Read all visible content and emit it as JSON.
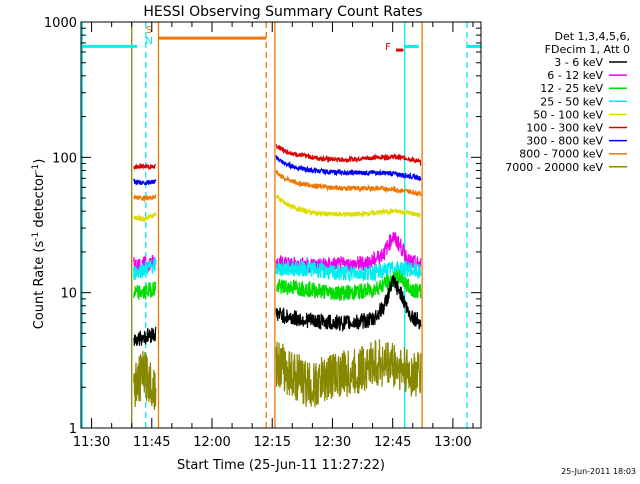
{
  "chart_data": {
    "type": "line",
    "title": "HESSI Observing Summary Count Rates",
    "xlabel": "Start Time (25-Jun-11 11:27:22)",
    "ylabel_main": "Count Rate (s",
    "ylabel_sup1": "-1",
    "ylabel_mid": " detector",
    "ylabel_sup2": "-1",
    "ylabel_end": ")",
    "y_scale": "log",
    "ylim": [
      1,
      1000
    ],
    "xlim": [
      "11:27:22",
      "13:07"
    ],
    "x_ticks": [
      {
        "value": "11:30",
        "label": "11:30"
      },
      {
        "value": "11:45",
        "label": "11:45"
      },
      {
        "value": "12:00",
        "label": "12:00"
      },
      {
        "value": "12:15",
        "label": "12:15"
      },
      {
        "value": "12:30",
        "label": "12:30"
      },
      {
        "value": "12:45",
        "label": "12:45"
      },
      {
        "value": "13:00",
        "label": "13:00"
      }
    ],
    "y_ticks": [
      {
        "value": 1,
        "label": "1"
      },
      {
        "value": 10,
        "label": "10"
      },
      {
        "value": 100,
        "label": "100"
      },
      {
        "value": 1000,
        "label": "1000"
      }
    ],
    "legend": {
      "placement": "right",
      "header": [
        "Det 1,3,4,5,6,",
        "FDecim 1, Att 0"
      ],
      "entries": [
        {
          "label": "3 - 6 keV",
          "color": "#000000"
        },
        {
          "label": "6 - 12 keV",
          "color": "#ee00ee"
        },
        {
          "label": "12 - 25 keV",
          "color": "#00dd00"
        },
        {
          "label": "25 - 50 keV",
          "color": "#00eeee"
        },
        {
          "label": "50 - 100 keV",
          "color": "#dddd00"
        },
        {
          "label": "100 - 300 keV",
          "color": "#dd0000"
        },
        {
          "label": "300 - 800 keV",
          "color": "#0000ee"
        },
        {
          "label": "800 - 7000 keV",
          "color": "#ee7700"
        },
        {
          "label": "7000 - 20000 keV",
          "color": "#888800"
        }
      ]
    },
    "series": [
      {
        "name": "100 - 300 keV",
        "color": "#dd0000",
        "segments": [
          {
            "t": [
              "11:40:30",
              "11:43",
              "11:46"
            ],
            "v": [
              85,
              86,
              85
            ]
          },
          {
            "t": [
              "12:16",
              "12:18",
              "12:21",
              "12:25",
              "12:29",
              "12:33",
              "12:37",
              "12:41",
              "12:45",
              "12:49",
              "12:52"
            ],
            "v": [
              122,
              112,
              105,
              100,
              97,
              96,
              98,
              100,
              101,
              98,
              92
            ]
          }
        ]
      },
      {
        "name": "300 - 800 keV",
        "color": "#0000ee",
        "segments": [
          {
            "t": [
              "11:40:30",
              "11:43",
              "11:46"
            ],
            "v": [
              66,
              65,
              66
            ]
          },
          {
            "t": [
              "12:16",
              "12:18",
              "12:21",
              "12:25",
              "12:29",
              "12:33",
              "12:37",
              "12:41",
              "12:45",
              "12:49",
              "12:52"
            ],
            "v": [
              100,
              90,
              84,
              80,
              78,
              77,
              77,
              77,
              76,
              73,
              70
            ]
          }
        ]
      },
      {
        "name": "800 - 7000 keV",
        "color": "#ee7700",
        "segments": [
          {
            "t": [
              "11:40:30",
              "11:43",
              "11:46"
            ],
            "v": [
              51,
              50,
              51
            ]
          },
          {
            "t": [
              "12:16",
              "12:18",
              "12:21",
              "12:25",
              "12:29",
              "12:33",
              "12:37",
              "12:41",
              "12:45",
              "12:49",
              "12:52"
            ],
            "v": [
              78,
              70,
              65,
              62,
              60,
              59,
              59,
              59,
              58,
              56,
              54
            ]
          }
        ]
      },
      {
        "name": "50 - 100 keV",
        "color": "#dddd00",
        "segments": [
          {
            "t": [
              "11:40:30",
              "11:43",
              "11:46"
            ],
            "v": [
              36,
              35,
              38
            ]
          },
          {
            "t": [
              "12:16",
              "12:18",
              "12:21",
              "12:25",
              "12:29",
              "12:33",
              "12:37",
              "12:41",
              "12:45",
              "12:49",
              "12:52"
            ],
            "v": [
              52,
              46,
              42,
              39,
              38,
              38,
              38,
              39,
              40,
              39,
              37
            ]
          }
        ]
      },
      {
        "name": "6 - 12 keV",
        "color": "#ee00ee",
        "segments": [
          {
            "t": [
              "11:40:30",
              "11:43",
              "11:46"
            ],
            "v": [
              16,
              16,
              17
            ]
          },
          {
            "t": [
              "12:16",
              "12:20",
              "12:25",
              "12:30",
              "12:35",
              "12:40",
              "12:43",
              "12:45",
              "12:47",
              "12:49",
              "12:52"
            ],
            "v": [
              17,
              16,
              16,
              16,
              16,
              17,
              20,
              26,
              22,
              17,
              16
            ]
          }
        ]
      },
      {
        "name": "25 - 50 keV",
        "color": "#00eeee",
        "segments": [
          {
            "t": [
              "11:40:30",
              "11:43",
              "11:46"
            ],
            "v": [
              14,
              15,
              16
            ]
          },
          {
            "t": [
              "12:16",
              "12:20",
              "12:25",
              "12:30",
              "12:35",
              "12:40",
              "12:45",
              "12:49",
              "12:52"
            ],
            "v": [
              15,
              15,
              15,
              14,
              14,
              14,
              15,
              15,
              14
            ]
          }
        ]
      },
      {
        "name": "12 - 25 keV",
        "color": "#00dd00",
        "segments": [
          {
            "t": [
              "11:40:30",
              "11:43",
              "11:46"
            ],
            "v": [
              10,
              10,
              11
            ]
          },
          {
            "t": [
              "12:16",
              "12:20",
              "12:25",
              "12:30",
              "12:35",
              "12:40",
              "12:44",
              "12:47",
              "12:49",
              "12:52"
            ],
            "v": [
              11,
              11,
              10.5,
              10,
              10,
              10.5,
              12,
              13,
              11,
              10
            ]
          }
        ]
      },
      {
        "name": "3 - 6 keV",
        "color": "#000000",
        "segments": [
          {
            "t": [
              "11:40:30",
              "11:43",
              "11:46"
            ],
            "v": [
              4.5,
              4.7,
              5
            ]
          },
          {
            "t": [
              "12:16",
              "12:20",
              "12:25",
              "12:30",
              "12:35",
              "12:40",
              "12:43",
              "12:45",
              "12:47",
              "12:49",
              "12:52"
            ],
            "v": [
              7,
              6.5,
              6.2,
              6,
              6,
              6.3,
              8,
              12,
              10,
              7,
              6
            ]
          }
        ]
      },
      {
        "name": "7000 - 20000 keV",
        "color": "#888800",
        "segments": [
          {
            "t": [
              "11:40:30",
              "11:43",
              "11:46"
            ],
            "v": [
              2,
              2.5,
              2
            ]
          },
          {
            "t": [
              "12:16",
              "12:20",
              "12:25",
              "12:30",
              "12:35",
              "12:40",
              "12:45",
              "12:49",
              "12:52"
            ],
            "v": [
              3,
              2.5,
              2,
              2.5,
              2.5,
              3,
              3,
              2.5,
              2.5
            ]
          }
        ]
      }
    ],
    "markers": [
      {
        "kind": "solid",
        "color": "#00eeee",
        "t": "11:27:40",
        "note": "cyan bar start"
      },
      {
        "kind": "dashed",
        "color": "#00eeee",
        "t": "11:43:30"
      },
      {
        "kind": "solid",
        "color": "#ee7700",
        "t": "11:46:40"
      },
      {
        "kind": "dashed",
        "color": "#ee7700",
        "t": "12:13:30"
      },
      {
        "kind": "solid",
        "color": "#ee7700",
        "t": "12:15:40"
      },
      {
        "kind": "solid",
        "color": "#00eeee",
        "t": "12:48"
      },
      {
        "kind": "dashed",
        "color": "#00eeee",
        "t": "13:03:30"
      },
      {
        "kind": "solid",
        "color": "#888800",
        "t": "11:40:00"
      },
      {
        "kind": "solid",
        "color": "#ee7700",
        "t": "12:52:20"
      }
    ],
    "bars": [
      {
        "color": "#00eeee",
        "t": [
          "11:27:22",
          "11:41:20"
        ],
        "v": 660
      },
      {
        "color": "#ee7700",
        "t": [
          "11:46:40",
          "12:13:30"
        ],
        "v": 760
      },
      {
        "color": "#dd0000",
        "t": [
          "12:45:50",
          "12:47:40"
        ],
        "v": 620
      },
      {
        "color": "#00eeee",
        "t": [
          "12:48",
          "12:51:30"
        ],
        "v": 660
      },
      {
        "color": "#00eeee",
        "t": [
          "13:03:30",
          "13:07"
        ],
        "v": 660
      }
    ],
    "annotations": [
      {
        "text": "S",
        "color": "#ee7700",
        "t": "11:44:20",
        "v": 830
      },
      {
        "text": "N",
        "color": "#00eeee",
        "t": "11:44:20",
        "v": 690
      },
      {
        "text": "F",
        "color": "#dd0000",
        "t": "12:43:50",
        "v": 620
      }
    ]
  },
  "footer_timestamp": "25-Jun-2011 18:03"
}
